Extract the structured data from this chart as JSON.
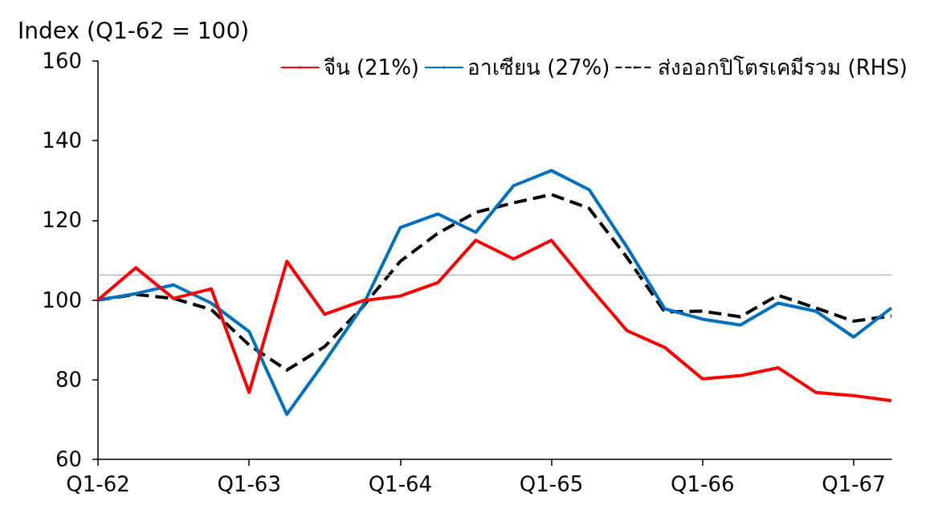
{
  "chart_data": {
    "type": "line",
    "ylabel": "Index (Q1-62 = 100)",
    "categories": [
      "Q1-62",
      null,
      null,
      null,
      "Q1-63",
      null,
      null,
      null,
      "Q1-64",
      null,
      null,
      null,
      "Q1-65",
      null,
      null,
      null,
      "Q1-66",
      null,
      null,
      null,
      "Q1-67",
      null
    ],
    "series": [
      {
        "name": "จีน (21%)",
        "color": "#ff0000",
        "line_style": "solid",
        "values": [
          100,
          108.1,
          100.4,
          102.8,
          76.8,
          109.7,
          96.4,
          99.8,
          101.0,
          104.4,
          115.0,
          110.3,
          115.0,
          103.4,
          92.3,
          88.1,
          80.2,
          81.0,
          83.0,
          76.8,
          76.0,
          74.7
        ]
      },
      {
        "name": "อาเซียน (27%)",
        "color": "#0070c0",
        "line_style": "solid",
        "values": [
          100,
          101.6,
          103.8,
          99.2,
          92.1,
          71.3,
          84.5,
          98.4,
          118.2,
          121.6,
          117.0,
          128.7,
          132.5,
          127.7,
          113.3,
          97.8,
          95.2,
          93.7,
          99.2,
          97.2,
          90.7,
          98.0
        ]
      },
      {
        "name": "ส่งออกปิโตรเคมีรวม (RHS)",
        "color": "#000000",
        "line_style": "dashed",
        "values": [
          100,
          101.4,
          100.4,
          97.6,
          88.7,
          82.4,
          88.3,
          98.2,
          109.7,
          116.8,
          122.0,
          124.4,
          126.5,
          123.0,
          110.7,
          97.0,
          97.2,
          95.8,
          101.2,
          98.0,
          94.7,
          96.0
        ]
      }
    ],
    "ylim": [
      60,
      160
    ],
    "yticks": [
      60,
      80,
      100,
      120,
      140,
      160
    ],
    "ref_lines": [
      {
        "axis": "y",
        "value": 106.3,
        "label": null,
        "color": "#a6a6a6"
      }
    ],
    "grid": false,
    "legend": "top right",
    "marker": "none"
  }
}
